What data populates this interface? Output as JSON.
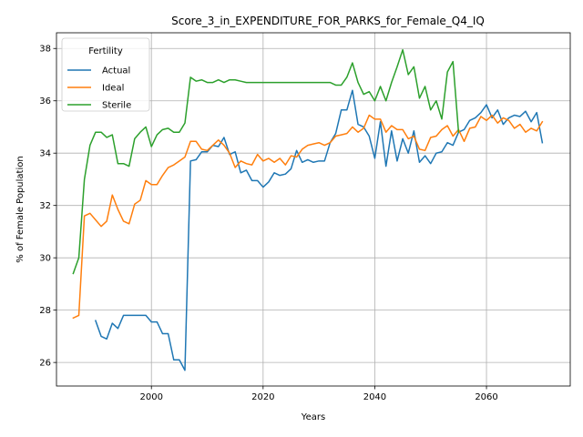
{
  "chart_data": {
    "type": "line",
    "title": "Score_3_in_EXPENDITURE_FOR_PARKS_for_Female_Q4_IQ",
    "xlabel": "Years",
    "ylabel": "% of Female Population",
    "xlim": [
      1983,
      2075
    ],
    "ylim": [
      25.1,
      38.6
    ],
    "xticks": [
      2000,
      2020,
      2040,
      2060
    ],
    "yticks": [
      26,
      28,
      30,
      32,
      34,
      36,
      38
    ],
    "grid": true,
    "legend": {
      "title": "Fertility",
      "position": "top-left"
    },
    "series": [
      {
        "name": "Actual",
        "color": "#1f77b4",
        "x": [
          1990,
          1991,
          1992,
          1993,
          1994,
          1995,
          1996,
          1997,
          1998,
          1999,
          2000,
          2001,
          2002,
          2003,
          2004,
          2005,
          2006,
          2007,
          2008,
          2009,
          2010,
          2011,
          2012,
          2013,
          2014,
          2015,
          2016,
          2017,
          2018,
          2019,
          2020,
          2021,
          2022,
          2023,
          2024,
          2025,
          2026,
          2027,
          2028,
          2029,
          2030,
          2031,
          2032,
          2033,
          2034,
          2035,
          2036,
          2037,
          2038,
          2039,
          2040,
          2041,
          2042,
          2043,
          2044,
          2045,
          2046,
          2047,
          2048,
          2049,
          2050,
          2051,
          2052,
          2053,
          2054,
          2055,
          2056,
          2057,
          2058,
          2059,
          2060,
          2061,
          2062,
          2063,
          2064,
          2065,
          2066,
          2067,
          2068,
          2069,
          2070
        ],
        "y": [
          27.6,
          27.0,
          26.9,
          27.5,
          27.3,
          27.8,
          27.8,
          27.8,
          27.8,
          27.8,
          27.55,
          27.55,
          27.1,
          27.1,
          26.1,
          26.1,
          25.7,
          33.7,
          33.75,
          34.05,
          34.05,
          34.3,
          34.25,
          34.6,
          33.95,
          34.05,
          33.25,
          33.35,
          32.95,
          32.95,
          32.7,
          32.9,
          33.25,
          33.15,
          33.2,
          33.4,
          34.1,
          33.65,
          33.75,
          33.65,
          33.7,
          33.7,
          34.4,
          34.75,
          35.65,
          35.65,
          36.4,
          35.1,
          35.0,
          34.65,
          33.8,
          35.2,
          33.5,
          34.85,
          33.7,
          34.55,
          34.0,
          34.85,
          33.65,
          33.9,
          33.6,
          34.0,
          34.05,
          34.4,
          34.3,
          34.8,
          34.9,
          35.25,
          35.35,
          35.55,
          35.85,
          35.35,
          35.65,
          35.1,
          35.35,
          35.45,
          35.4,
          35.6,
          35.2,
          35.55,
          34.4
        ]
      },
      {
        "name": "Ideal",
        "color": "#ff7f0e",
        "x": [
          1986,
          1987,
          1988,
          1989,
          1990,
          1991,
          1992,
          1993,
          1994,
          1995,
          1996,
          1997,
          1998,
          1999,
          2000,
          2001,
          2002,
          2003,
          2004,
          2005,
          2006,
          2007,
          2008,
          2009,
          2010,
          2011,
          2012,
          2013,
          2014,
          2015,
          2016,
          2017,
          2018,
          2019,
          2020,
          2021,
          2022,
          2023,
          2024,
          2025,
          2026,
          2027,
          2028,
          2029,
          2030,
          2031,
          2032,
          2033,
          2034,
          2035,
          2036,
          2037,
          2038,
          2039,
          2040,
          2041,
          2042,
          2043,
          2044,
          2045,
          2046,
          2047,
          2048,
          2049,
          2050,
          2051,
          2052,
          2053,
          2054,
          2055,
          2056,
          2057,
          2058,
          2059,
          2060,
          2061,
          2062,
          2063,
          2064,
          2065,
          2066,
          2067,
          2068,
          2069,
          2070
        ],
        "y": [
          27.7,
          27.8,
          31.6,
          31.7,
          31.45,
          31.2,
          31.4,
          32.4,
          31.85,
          31.4,
          31.3,
          32.05,
          32.2,
          32.95,
          32.8,
          32.8,
          33.15,
          33.45,
          33.55,
          33.7,
          33.85,
          34.45,
          34.45,
          34.15,
          34.1,
          34.3,
          34.5,
          34.3,
          34.0,
          33.45,
          33.7,
          33.6,
          33.55,
          33.95,
          33.7,
          33.8,
          33.65,
          33.8,
          33.55,
          33.9,
          33.85,
          34.15,
          34.3,
          34.35,
          34.4,
          34.3,
          34.4,
          34.65,
          34.7,
          34.75,
          35.0,
          34.8,
          34.95,
          35.45,
          35.3,
          35.3,
          34.8,
          35.05,
          34.9,
          34.9,
          34.55,
          34.65,
          34.15,
          34.1,
          34.6,
          34.65,
          34.9,
          35.05,
          34.65,
          34.9,
          34.45,
          34.95,
          35.0,
          35.4,
          35.25,
          35.45,
          35.15,
          35.35,
          35.25,
          34.95,
          35.1,
          34.8,
          34.95,
          34.85,
          35.2
        ]
      },
      {
        "name": "Sterile",
        "color": "#2ca02c",
        "x": [
          1986,
          1987,
          1988,
          1989,
          1990,
          1991,
          1992,
          1993,
          1994,
          1995,
          1996,
          1997,
          1998,
          1999,
          2000,
          2001,
          2002,
          2003,
          2004,
          2005,
          2006,
          2007,
          2008,
          2009,
          2010,
          2011,
          2012,
          2013,
          2014,
          2015,
          2016,
          2017,
          2018,
          2019,
          2020,
          2021,
          2022,
          2023,
          2024,
          2025,
          2026,
          2027,
          2028,
          2029,
          2030,
          2031,
          2032,
          2033,
          2034,
          2035,
          2036,
          2037,
          2038,
          2039,
          2040,
          2041,
          2042,
          2043,
          2044,
          2045,
          2046,
          2047,
          2048,
          2049,
          2050,
          2051,
          2052,
          2053,
          2054,
          2055
        ],
        "y": [
          29.4,
          30.0,
          33.0,
          34.3,
          34.8,
          34.8,
          34.6,
          34.7,
          33.6,
          33.6,
          33.5,
          34.55,
          34.8,
          35.0,
          34.25,
          34.7,
          34.9,
          34.95,
          34.8,
          34.8,
          35.15,
          36.9,
          36.75,
          36.8,
          36.7,
          36.7,
          36.8,
          36.7,
          36.8,
          36.8,
          36.75,
          36.7,
          36.7,
          36.7,
          36.7,
          36.7,
          36.7,
          36.7,
          36.7,
          36.7,
          36.7,
          36.7,
          36.7,
          36.7,
          36.7,
          36.7,
          36.7,
          36.6,
          36.6,
          36.9,
          37.45,
          36.7,
          36.25,
          36.35,
          36.0,
          36.55,
          36.0,
          36.7,
          37.3,
          37.95,
          37.0,
          37.3,
          36.1,
          36.55,
          35.65,
          36.0,
          35.3,
          37.1,
          37.5,
          34.8
        ]
      }
    ]
  }
}
